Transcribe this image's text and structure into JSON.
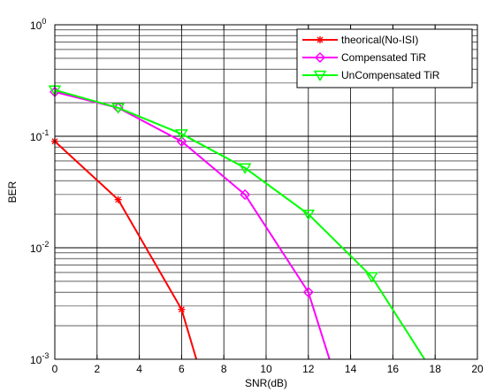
{
  "chart_data": {
    "type": "line",
    "title": "",
    "xlabel": "SNR(dB)",
    "ylabel": "BER",
    "xlim": [
      0,
      20
    ],
    "ylim": [
      0.001,
      1
    ],
    "yscale": "log",
    "grid": true,
    "legend_position": "top-right",
    "x_ticks": [
      0,
      2,
      4,
      6,
      8,
      10,
      12,
      14,
      16,
      18,
      20
    ],
    "y_ticks": [
      {
        "value": 0.001,
        "exp": "-3"
      },
      {
        "value": 0.01,
        "exp": "-2"
      },
      {
        "value": 0.1,
        "exp": "-1"
      },
      {
        "value": 1,
        "exp": "0"
      }
    ],
    "series": [
      {
        "name": "theorical(No-ISI)",
        "color": "#ff0000",
        "marker": "star",
        "x": [
          0,
          3,
          6,
          6.7
        ],
        "y": [
          0.09,
          0.027,
          0.0028,
          0.001
        ],
        "marker_points": 3
      },
      {
        "name": "Compensated TiR",
        "color": "#ff00ff",
        "marker": "diamond",
        "x": [
          0,
          3,
          6,
          9,
          12,
          13
        ],
        "y": [
          0.25,
          0.18,
          0.09,
          0.03,
          0.004,
          0.001
        ],
        "marker_points": 5
      },
      {
        "name": "UnCompensated TiR",
        "color": "#00ff00",
        "marker": "triangle-down",
        "x": [
          0,
          3,
          6,
          9,
          12,
          15,
          17.5
        ],
        "y": [
          0.26,
          0.18,
          0.105,
          0.052,
          0.02,
          0.0055,
          0.001
        ],
        "marker_points": 6
      }
    ]
  }
}
